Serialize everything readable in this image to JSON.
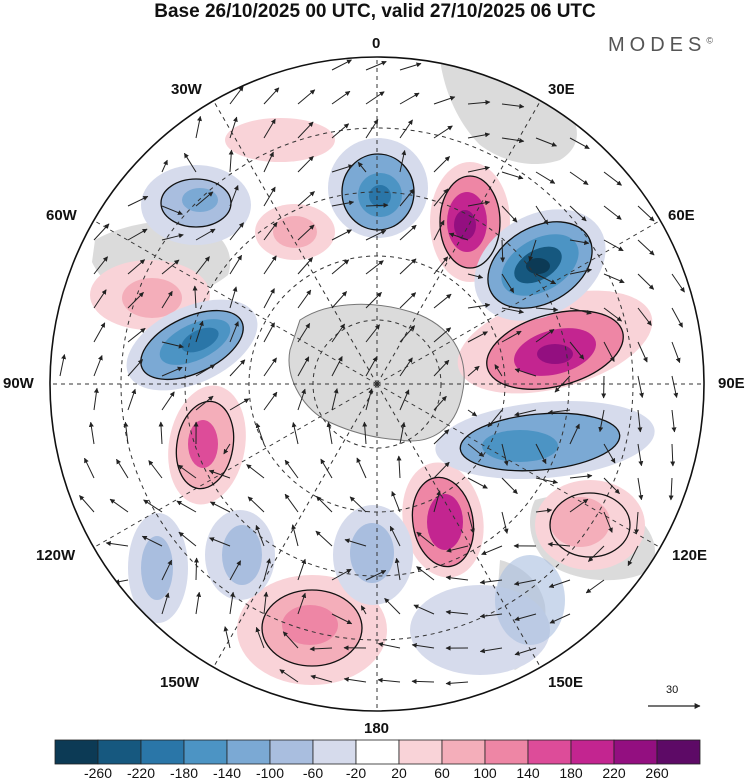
{
  "title": "Base 26/10/2025 00 UTC, valid 27/10/2025 06 UTC",
  "brand": "MODES",
  "brand_mark": "©",
  "meridian_labels": {
    "top": "0",
    "top_right": "30E",
    "right_upper": "60E",
    "right": "90E",
    "right_lower": "120E",
    "bottom_right": "150E",
    "bottom": "180",
    "bottom_left": "150W",
    "left_lower": "120W",
    "left": "90W",
    "left_upper": "60W",
    "top_left": "30W"
  },
  "reference_vector": "30",
  "colorbar": {
    "colors": [
      "#0c3a55",
      "#16587f",
      "#2a76a8",
      "#4c94c4",
      "#7ba9d4",
      "#a9bedf",
      "#d6dbec",
      "#ffffff",
      "#f9d3d8",
      "#f4aeba",
      "#ee86a5",
      "#dd4c99",
      "#c32590",
      "#930f80",
      "#5d0a66"
    ],
    "tick_labels": [
      "-260",
      "-220",
      "-180",
      "-140",
      "-100",
      "-60",
      "-20",
      "20",
      "60",
      "100",
      "140",
      "180",
      "220",
      "260"
    ]
  },
  "colors": {
    "land": "#8c8c8c",
    "grid": "#333333",
    "vector": "#222222"
  }
}
